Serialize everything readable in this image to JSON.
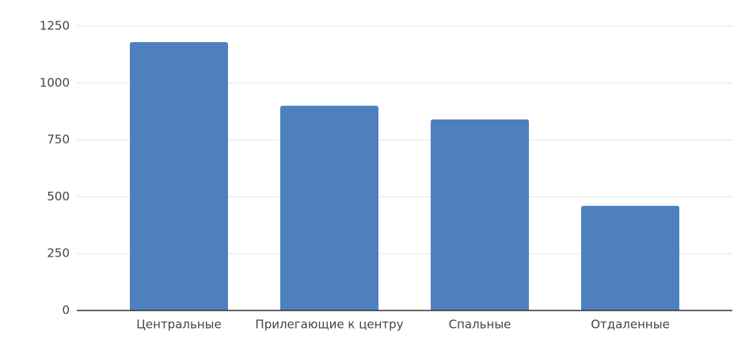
{
  "chart_data": {
    "type": "bar",
    "categories": [
      "Центральные",
      "Прилегающие к центру",
      "Спальные",
      "Отдаленные"
    ],
    "values": [
      1180,
      900,
      840,
      460
    ],
    "color": "#4e80bd",
    "ylim": [
      0,
      1250
    ],
    "yticks": [
      0,
      250,
      500,
      750,
      1000,
      1250
    ],
    "grid": true
  }
}
